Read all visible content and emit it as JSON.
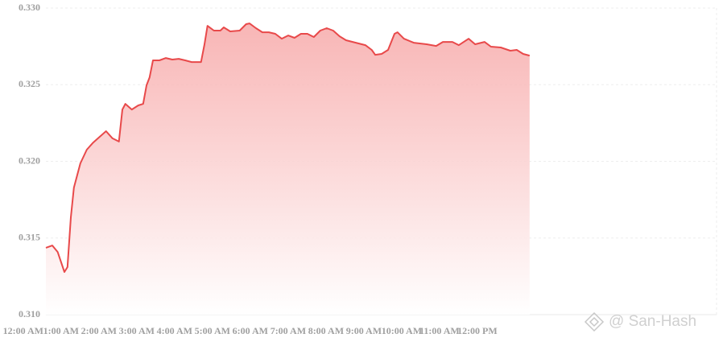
{
  "chart_data": {
    "type": "area",
    "x": [
      0.6,
      0.77,
      0.91,
      1.09,
      1.17,
      1.26,
      1.34,
      1.51,
      1.68,
      1.85,
      2.02,
      2.19,
      2.36,
      2.53,
      2.62,
      2.7,
      2.87,
      3.04,
      3.17,
      3.26,
      3.34,
      3.43,
      3.6,
      3.77,
      3.94,
      4.11,
      4.28,
      4.45,
      4.7,
      4.79,
      4.87,
      5.04,
      5.21,
      5.3,
      5.47,
      5.72,
      5.89,
      5.98,
      6.15,
      6.32,
      6.49,
      6.66,
      6.83,
      7.0,
      7.17,
      7.34,
      7.51,
      7.68,
      7.85,
      8.02,
      8.19,
      8.36,
      8.53,
      8.79,
      9.04,
      9.21,
      9.3,
      9.47,
      9.64,
      9.81,
      9.89,
      10.06,
      10.32,
      10.66,
      10.91,
      11.09,
      11.34,
      11.51,
      11.77,
      11.94,
      12.19,
      12.36,
      12.62,
      12.87,
      13.04,
      13.21,
      13.38
    ],
    "values": [
      0.31436,
      0.31451,
      0.31409,
      0.31278,
      0.3131,
      0.31635,
      0.31829,
      0.31987,
      0.32076,
      0.32123,
      0.3216,
      0.32197,
      0.3215,
      0.32129,
      0.32338,
      0.32375,
      0.32338,
      0.32365,
      0.32375,
      0.32496,
      0.32548,
      0.32659,
      0.32659,
      0.32674,
      0.32664,
      0.32669,
      0.32659,
      0.32648,
      0.32648,
      0.32764,
      0.32884,
      0.32853,
      0.32853,
      0.32874,
      0.32848,
      0.32853,
      0.32895,
      0.329,
      0.32869,
      0.32842,
      0.32842,
      0.32832,
      0.328,
      0.32821,
      0.32806,
      0.32832,
      0.32832,
      0.32811,
      0.32853,
      0.32869,
      0.32853,
      0.32816,
      0.3279,
      0.32774,
      0.32758,
      0.32727,
      0.32695,
      0.32701,
      0.32727,
      0.32832,
      0.32842,
      0.328,
      0.32774,
      0.32764,
      0.32753,
      0.32779,
      0.32779,
      0.32758,
      0.328,
      0.32764,
      0.32779,
      0.32748,
      0.32743,
      0.32722,
      0.32727,
      0.32701,
      0.3269
    ],
    "color": "#e8494a",
    "xlim": [
      0.6,
      18.32
    ],
    "xticks": [
      {
        "value": 0,
        "label": "12:00 AM"
      },
      {
        "value": 1,
        "label": "1:00 AM"
      },
      {
        "value": 2,
        "label": "2:00 AM"
      },
      {
        "value": 3,
        "label": "3:00 AM"
      },
      {
        "value": 4,
        "label": "4:00 AM"
      },
      {
        "value": 5,
        "label": "5:00 AM"
      },
      {
        "value": 6,
        "label": "6:00 AM"
      },
      {
        "value": 7,
        "label": "7:00 AM"
      },
      {
        "value": 8,
        "label": "8:00 AM"
      },
      {
        "value": 9,
        "label": "9:00 AM"
      },
      {
        "value": 10,
        "label": "10:00 AM"
      },
      {
        "value": 11,
        "label": "11:00 AM"
      },
      {
        "value": 12,
        "label": "12:00 PM"
      }
    ],
    "ylim": [
      0.31,
      0.33
    ],
    "yticks": [
      {
        "value": 0.31,
        "label": "0.310"
      },
      0.315,
      {
        "value": 0.32,
        "label": "0.320"
      },
      0.325,
      {
        "value": 0.33,
        "label": "0.330"
      }
    ],
    "grid": true,
    "watermark": "@ San-Hash"
  }
}
